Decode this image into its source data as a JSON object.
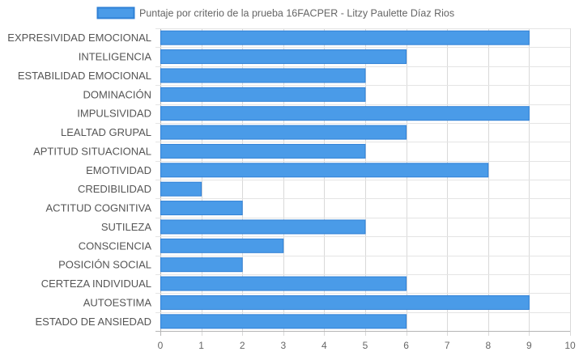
{
  "chart_data": {
    "type": "bar",
    "orientation": "horizontal",
    "categories": [
      "EXPRESIVIDAD EMOCIONAL",
      "INTELIGENCIA",
      "ESTABILIDAD EMOCIONAL",
      "DOMINACIÓN",
      "IMPULSIVIDAD",
      "LEALTAD GRUPAL",
      "APTITUD SITUACIONAL",
      "EMOTIVIDAD",
      "CREDIBILIDAD",
      "ACTITUD COGNITIVA",
      "SUTILEZA",
      "CONSCIENCIA",
      "POSICIÓN SOCIAL",
      "CERTEZA INDIVIDUAL",
      "AUTOESTIMA",
      "ESTADO DE ANSIEDAD"
    ],
    "series": [
      {
        "name": "Puntaje por criterio de la prueba 16FACPER - Litzy Paulette Díaz Rios",
        "values": [
          9,
          6,
          5,
          5,
          9,
          6,
          5,
          8,
          1,
          2,
          5,
          3,
          2,
          6,
          9,
          6
        ],
        "color": "#4a9be8",
        "border_color": "#2f80d6"
      }
    ],
    "xlim": [
      0,
      10
    ],
    "x_ticks": [
      0,
      1,
      2,
      3,
      4,
      5,
      6,
      7,
      8,
      9,
      10
    ],
    "grid": true,
    "legend_position": "top"
  }
}
